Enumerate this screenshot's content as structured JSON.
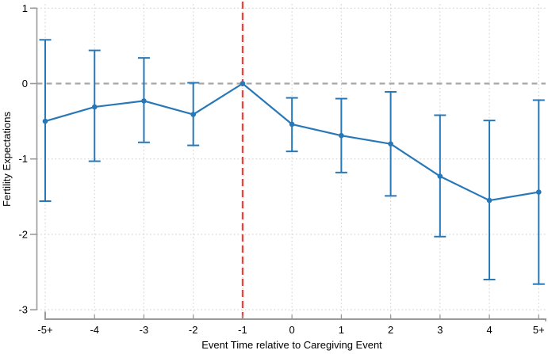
{
  "figure": {
    "kind": "event-study-plot",
    "background": "#ffffff"
  },
  "chart_data": {
    "type": "line",
    "title": "",
    "xlabel": "Event Time relative to Caregiving Event",
    "ylabel": "Fertility Expectations",
    "categories": [
      "-5+",
      "-4",
      "-3",
      "-2",
      "-1",
      "0",
      "1",
      "2",
      "3",
      "4",
      "5+"
    ],
    "series": [
      {
        "name": "point-estimates-with-95ci",
        "values": [
          -0.5,
          -0.31,
          -0.23,
          -0.41,
          0,
          -0.54,
          -0.69,
          -0.8,
          -1.23,
          -1.55,
          -1.44
        ],
        "ci_lower": [
          -1.56,
          -1.03,
          -0.78,
          -0.82,
          null,
          -0.9,
          -1.18,
          -1.49,
          -2.03,
          -2.6,
          -2.66
        ],
        "ci_upper": [
          0.58,
          0.44,
          0.34,
          0.01,
          null,
          -0.19,
          -0.2,
          -0.11,
          -0.42,
          -0.49,
          -0.22
        ]
      }
    ],
    "ylim": [
      -3,
      1
    ],
    "yticks": [
      1,
      0,
      -1,
      -2,
      -3
    ],
    "grid": true,
    "legend": "none",
    "reference_lines": {
      "vertical": {
        "at_category": "-1",
        "style": "dashed",
        "color": "#f0403c"
      },
      "horizontal": {
        "at_value": 0,
        "style": "dashed",
        "color": "#a8a8a8"
      }
    },
    "colors": {
      "series": "#2878b8",
      "grid": "#d2d2d2",
      "axis": "#9a9a9a",
      "text": "#000000"
    }
  }
}
